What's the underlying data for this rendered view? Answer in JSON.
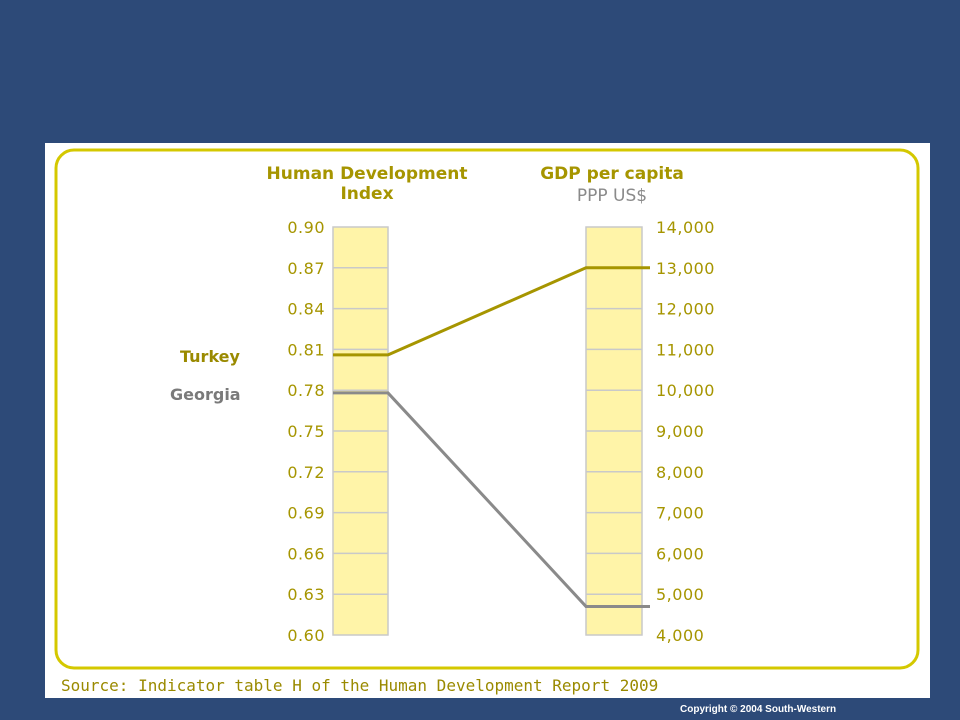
{
  "chart_data": {
    "type": "line",
    "axes": [
      {
        "title_line1": "Human Development",
        "title_line2": "Index",
        "ylim": [
          0.6,
          0.9
        ],
        "ticks": [
          "0.90",
          "0.87",
          "0.84",
          "0.81",
          "0.78",
          "0.75",
          "0.72",
          "0.69",
          "0.66",
          "0.63",
          "0.60"
        ]
      },
      {
        "title_line1": "GDP per capita",
        "title_line2": "PPP US$",
        "ylim": [
          4000,
          14000
        ],
        "ticks": [
          "14,000",
          "13,000",
          "12,000",
          "11,000",
          "10,000",
          "9,000",
          "8,000",
          "7,000",
          "6,000",
          "5,000",
          "4,000"
        ]
      }
    ],
    "series": [
      {
        "name": "Turkey",
        "hdi": 0.806,
        "gdp": 13000,
        "color": "#a69500"
      },
      {
        "name": "Georgia",
        "hdi": 0.778,
        "gdp": 4700,
        "color": "#8a8a8a"
      }
    ],
    "source": "Source: Indicator table H of the Human Development Report 2009"
  },
  "colors": {
    "slide_background": "#2d4a78",
    "panel_border": "#d4c800",
    "column_fill": "#fff4a8",
    "column_border": "#c9c9c9"
  },
  "copyright": "Copyright © 2004  South-Western"
}
